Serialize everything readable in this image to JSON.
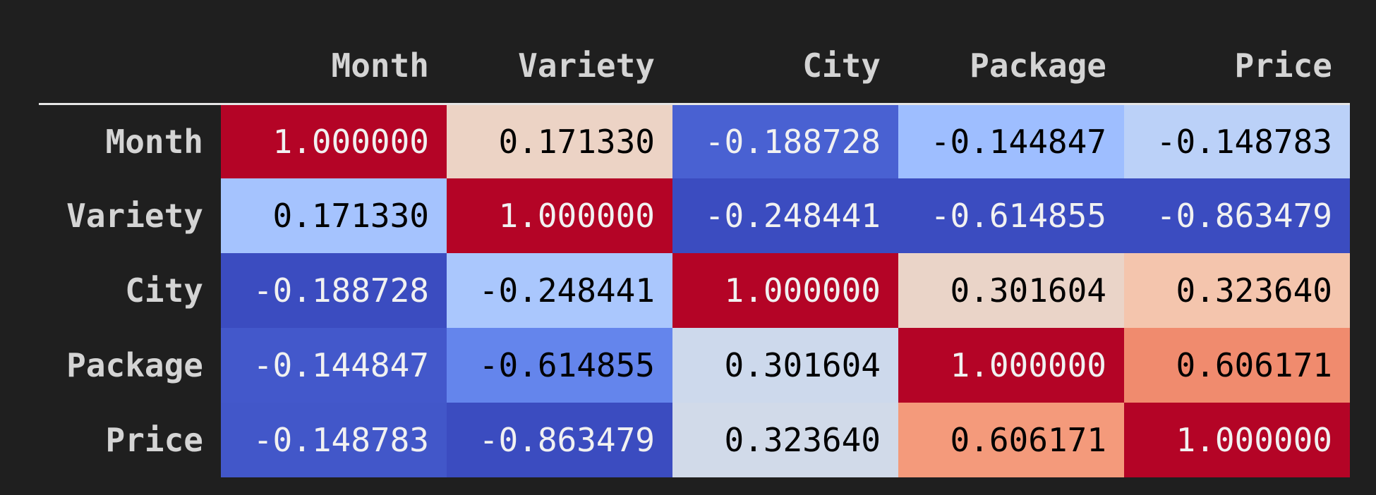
{
  "table": {
    "columns": [
      "Month",
      "Variety",
      "City",
      "Package",
      "Price"
    ],
    "rows": [
      {
        "label": "Month",
        "cells": [
          "1.000000",
          "0.171330",
          "-0.188728",
          "-0.144847",
          "-0.148783"
        ],
        "colors": [
          "#b40426",
          "#ecd3c5",
          "#4961d2",
          "#9ebeff",
          "#bbd1f8"
        ]
      },
      {
        "label": "Variety",
        "cells": [
          "0.171330",
          "1.000000",
          "-0.248441",
          "-0.614855",
          "-0.863479"
        ],
        "colors": [
          "#a5c3fe",
          "#b40426",
          "#3b4cc0",
          "#3b4cc0",
          "#3b4cc0"
        ]
      },
      {
        "label": "City",
        "cells": [
          "-0.188728",
          "-0.248441",
          "1.000000",
          "0.301604",
          "0.323640"
        ],
        "colors": [
          "#3b4cc0",
          "#aac7fd",
          "#b40426",
          "#ead4c8",
          "#f4c5ad"
        ]
      },
      {
        "label": "Package",
        "cells": [
          "-0.144847",
          "-0.614855",
          "0.301604",
          "1.000000",
          "0.606171"
        ],
        "colors": [
          "#4358cb",
          "#6485ec",
          "#cdd9ec",
          "#b40426",
          "#f08b6e"
        ]
      },
      {
        "label": "Price",
        "cells": [
          "-0.148783",
          "-0.863479",
          "0.323640",
          "0.606171",
          "1.000000"
        ],
        "colors": [
          "#4257c9",
          "#3b4cc0",
          "#d1dae9",
          "#f49a7b",
          "#b40426"
        ]
      }
    ]
  }
}
